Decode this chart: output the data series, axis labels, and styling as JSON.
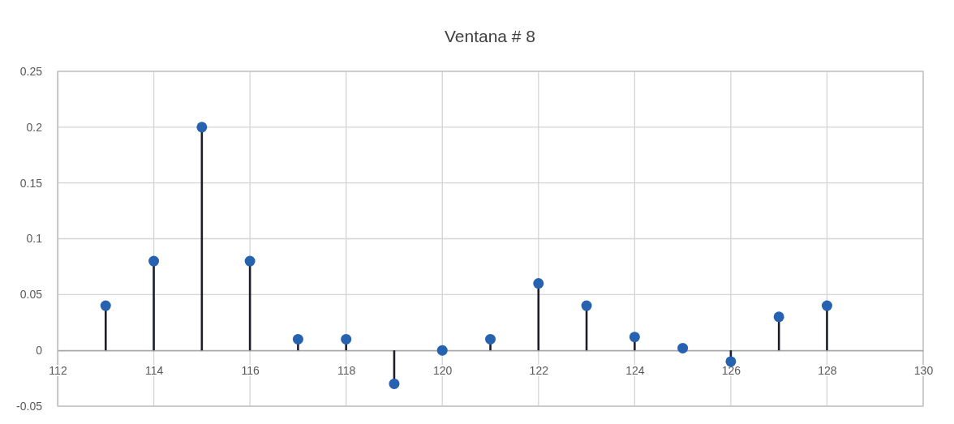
{
  "chart_data": {
    "type": "lollipop",
    "title": "Ventana # 8",
    "x": [
      113,
      114,
      115,
      116,
      117,
      118,
      119,
      120,
      121,
      122,
      123,
      124,
      125,
      126,
      127,
      128
    ],
    "series": [
      {
        "color": "#2762b0",
        "values": [
          0.04,
          0.08,
          0.2,
          0.08,
          0.01,
          0.01,
          -0.03,
          0,
          0.01,
          0.06,
          0.04,
          0.012,
          0.002,
          -0.01,
          0.03,
          0.04
        ]
      }
    ],
    "xlim": [
      112,
      130
    ],
    "xticks": [
      112,
      114,
      116,
      118,
      120,
      122,
      124,
      126,
      128,
      130
    ],
    "ylim": [
      -0.05,
      0.25
    ],
    "yticks": [
      -0.05,
      0,
      0.05,
      0.1,
      0.15,
      0.2,
      0.25
    ],
    "grid": true,
    "marker": "circle"
  }
}
